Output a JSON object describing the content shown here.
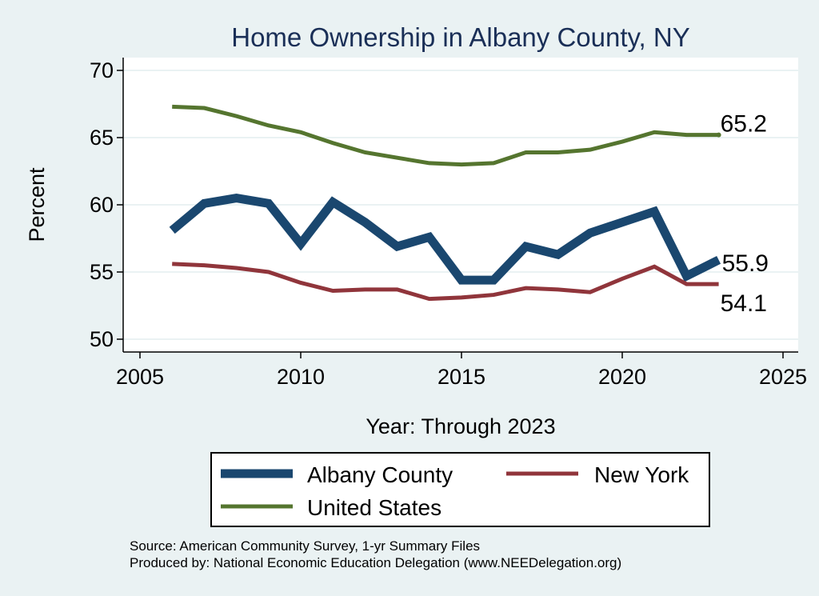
{
  "chart_data": {
    "type": "line",
    "title": "Home Ownership in Albany County, NY",
    "xlabel": "Year: Through 2023",
    "ylabel": "Percent",
    "xlim": [
      2005,
      2025
    ],
    "ylim": [
      50,
      70
    ],
    "xticks": [
      2005,
      2010,
      2015,
      2020,
      2025
    ],
    "yticks": [
      50,
      55,
      60,
      65,
      70
    ],
    "grid": true,
    "legend_position": "bottom",
    "x": [
      2006,
      2007,
      2008,
      2009,
      2010,
      2011,
      2012,
      2013,
      2014,
      2015,
      2016,
      2017,
      2018,
      2019,
      2020,
      2021,
      2022,
      2023
    ],
    "series": [
      {
        "name": "Albany County",
        "color": "#1a476f",
        "values": [
          58.1,
          60.1,
          60.5,
          60.1,
          57.1,
          60.2,
          58.7,
          56.9,
          57.6,
          54.4,
          54.4,
          56.9,
          56.3,
          57.9,
          58.7,
          59.5,
          54.7,
          55.9
        ],
        "end_label": "55.9"
      },
      {
        "name": "New York",
        "color": "#90353b",
        "values": [
          55.6,
          55.5,
          55.3,
          55.0,
          54.2,
          53.6,
          53.7,
          53.7,
          53.0,
          53.1,
          53.3,
          53.8,
          53.7,
          53.5,
          54.5,
          55.4,
          54.1,
          54.1
        ],
        "end_label": "54.1"
      },
      {
        "name": "United States",
        "color": "#55752f",
        "values": [
          67.3,
          67.2,
          66.6,
          65.9,
          65.4,
          64.6,
          63.9,
          63.5,
          63.1,
          63.0,
          63.1,
          63.9,
          63.9,
          64.1,
          64.7,
          65.4,
          65.2,
          65.2
        ],
        "end_label": "65.2"
      }
    ],
    "notes": [
      "Source: American Community Survey, 1-yr Summary Files",
      "Produced by: National Economic Education Delegation (www.NEEDelegation.org)"
    ]
  }
}
